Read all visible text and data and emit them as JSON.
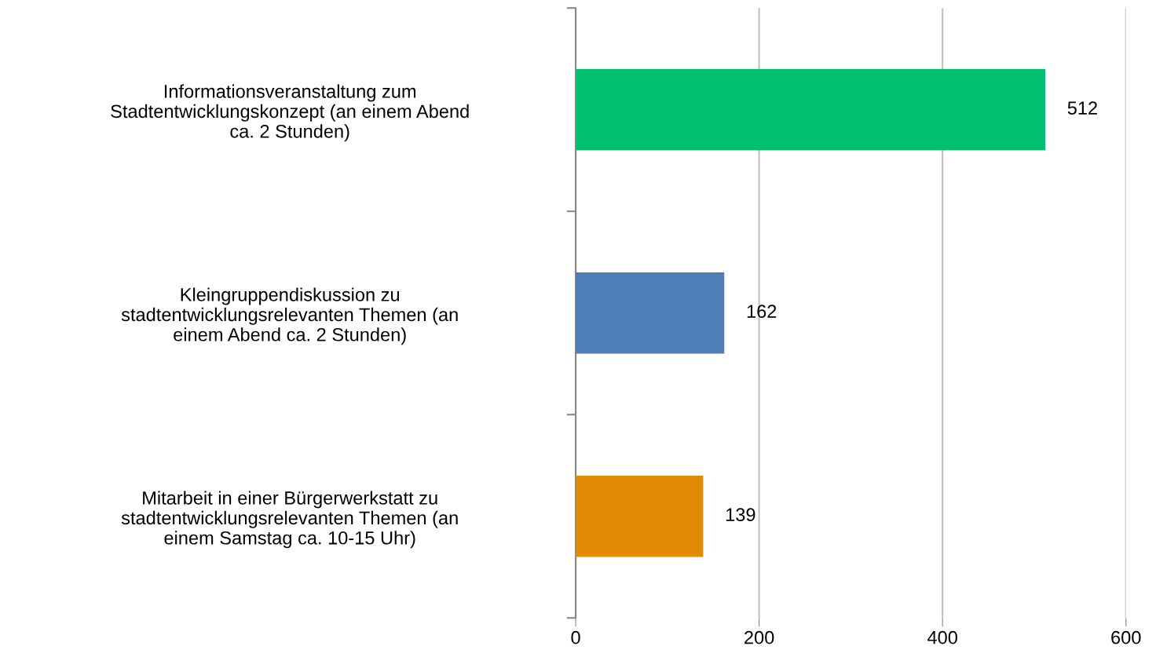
{
  "chart_data": {
    "type": "bar",
    "orientation": "horizontal",
    "categories": [
      "Informationsveranstaltung zum\nStadtentwicklungskonzept (an einem Abend\nca. 2 Stunden)",
      "Kleingruppendiskussion zu\nstadtentwicklungsrelevanten Themen (an\neinem Abend ca. 2 Stunden)",
      "Mitarbeit in einer Bürgerwerkstatt zu\nstadtentwicklungsrelevanten Themen (an\neinem Samstag ca. 10-15 Uhr)"
    ],
    "values": [
      512,
      162,
      139
    ],
    "colors": [
      "#00c070",
      "#4f7db5",
      "#e38a06"
    ],
    "xlim": [
      0,
      600
    ],
    "xticks": [
      0,
      200,
      400,
      600
    ],
    "grid": "x",
    "data_labels": true
  }
}
